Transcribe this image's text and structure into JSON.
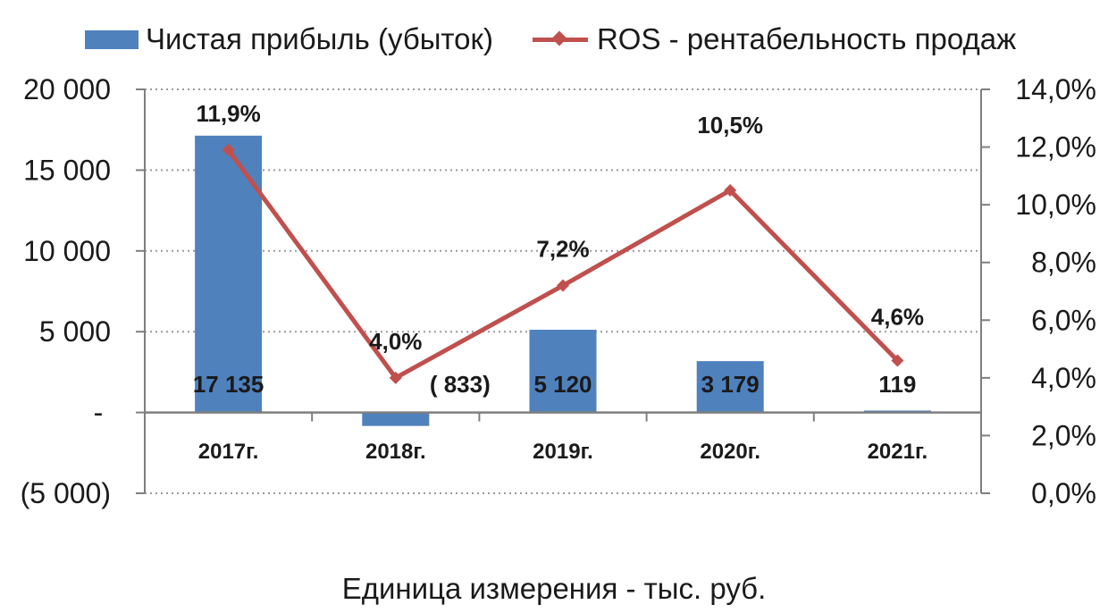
{
  "legend": {
    "bar_label": "Чистая прибыль (убыток)",
    "line_label": "ROS - рентабельность продаж"
  },
  "caption": "Единица измерения - тыс. руб.",
  "colors": {
    "bar": "#4f81bd",
    "line": "#c0504d",
    "grid": "#9a9a9a",
    "axis": "#7f7f7f"
  },
  "chart_data": {
    "type": "bar",
    "categories": [
      "2017г.",
      "2018г.",
      "2019г.",
      "2020г.",
      "2021г."
    ],
    "series": [
      {
        "name": "Чистая прибыль (убыток)",
        "type": "bar",
        "axis": "left",
        "values": [
          17135,
          -833,
          5120,
          3179,
          119
        ],
        "data_labels": [
          "17 135",
          "( 833)",
          "5 120",
          "3 179",
          "119"
        ]
      },
      {
        "name": "ROS - рентабельность продаж",
        "type": "line",
        "axis": "right",
        "values": [
          11.9,
          4.0,
          7.2,
          10.5,
          4.6
        ],
        "data_labels": [
          "11,9%",
          "4,0%",
          "7,2%",
          "10,5%",
          "4,6%"
        ]
      }
    ],
    "y_left": {
      "min": -5000,
      "max": 20000,
      "ticks": [
        20000,
        15000,
        10000,
        5000,
        0,
        -5000
      ],
      "tick_labels": [
        "20 000",
        "15 000",
        "10 000",
        "5 000",
        "-",
        "(5 000)"
      ]
    },
    "y_right": {
      "min": 0,
      "max": 14,
      "ticks": [
        14,
        12,
        10,
        8,
        6,
        4,
        2,
        0
      ],
      "tick_labels": [
        "14,0%",
        "12,0%",
        "10,0%",
        "8,0%",
        "6,0%",
        "4,0%",
        "2,0%",
        "0,0%"
      ]
    },
    "grid": true,
    "legend_position": "top"
  }
}
